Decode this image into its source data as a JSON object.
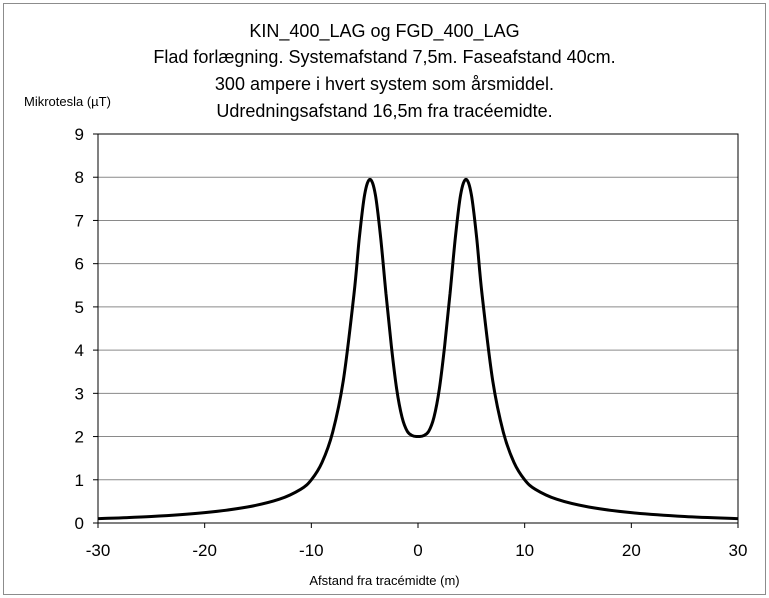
{
  "chart_data": {
    "type": "line",
    "title_lines": [
      "KIN_400_LAG og FGD_400_LAG",
      "Flad forlægning. Systemafstand 7,5m. Faseafstand 40cm.",
      "300 ampere i hvert system som årsmiddel.",
      "Udredningsafstand 16,5m fra tracéemidte."
    ],
    "xlabel": "Afstand fra tracémidte (m)",
    "ylabel": "Mikrotesla (µT)",
    "xlim": [
      -30,
      30
    ],
    "ylim": [
      0,
      9
    ],
    "xticks": [
      -30,
      -20,
      -10,
      0,
      10,
      20,
      30
    ],
    "yticks": [
      0,
      1,
      2,
      3,
      4,
      5,
      6,
      7,
      8,
      9
    ],
    "grid": "horizontal",
    "legend": "none",
    "series": [
      {
        "color": "#000000",
        "x": [
          -30,
          -25,
          -20,
          -16,
          -13,
          -11,
          -10,
          -9,
          -8,
          -7,
          -6,
          -5.5,
          -5,
          -4.5,
          -4,
          -3.5,
          -3,
          -2.5,
          -2,
          -1.5,
          -1,
          -0.5,
          0,
          0.5,
          1,
          1.5,
          2,
          2.5,
          3,
          3.5,
          4,
          4.5,
          5,
          5.5,
          6,
          7,
          8,
          9,
          10,
          11,
          13,
          16,
          20,
          25,
          30
        ],
        "y": [
          0.1,
          0.15,
          0.24,
          0.37,
          0.55,
          0.78,
          1.0,
          1.4,
          2.1,
          3.3,
          5.3,
          6.6,
          7.6,
          7.95,
          7.6,
          6.6,
          5.3,
          4.1,
          3.1,
          2.45,
          2.12,
          2.02,
          2.0,
          2.02,
          2.12,
          2.45,
          3.1,
          4.1,
          5.3,
          6.6,
          7.6,
          7.95,
          7.6,
          6.6,
          5.3,
          3.3,
          2.1,
          1.4,
          1.0,
          0.78,
          0.55,
          0.37,
          0.24,
          0.15,
          0.1
        ]
      }
    ]
  }
}
